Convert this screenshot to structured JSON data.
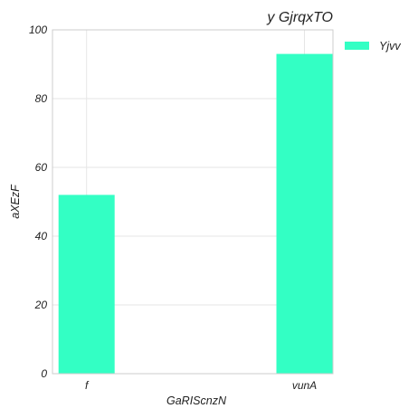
{
  "chart_data": {
    "type": "bar",
    "title": "y GjrqxTO",
    "xlabel": "GaRIScnzN",
    "ylabel": "aXEzF",
    "categories": [
      "f",
      "vunA"
    ],
    "series": [
      {
        "name": "Yjvv",
        "values": [
          52,
          93
        ],
        "color": "#33ffc4"
      }
    ],
    "ylim": [
      0,
      100
    ],
    "yticks": [
      0,
      20,
      40,
      60,
      80,
      100
    ],
    "grid": true,
    "legend": "outside-top-right"
  }
}
